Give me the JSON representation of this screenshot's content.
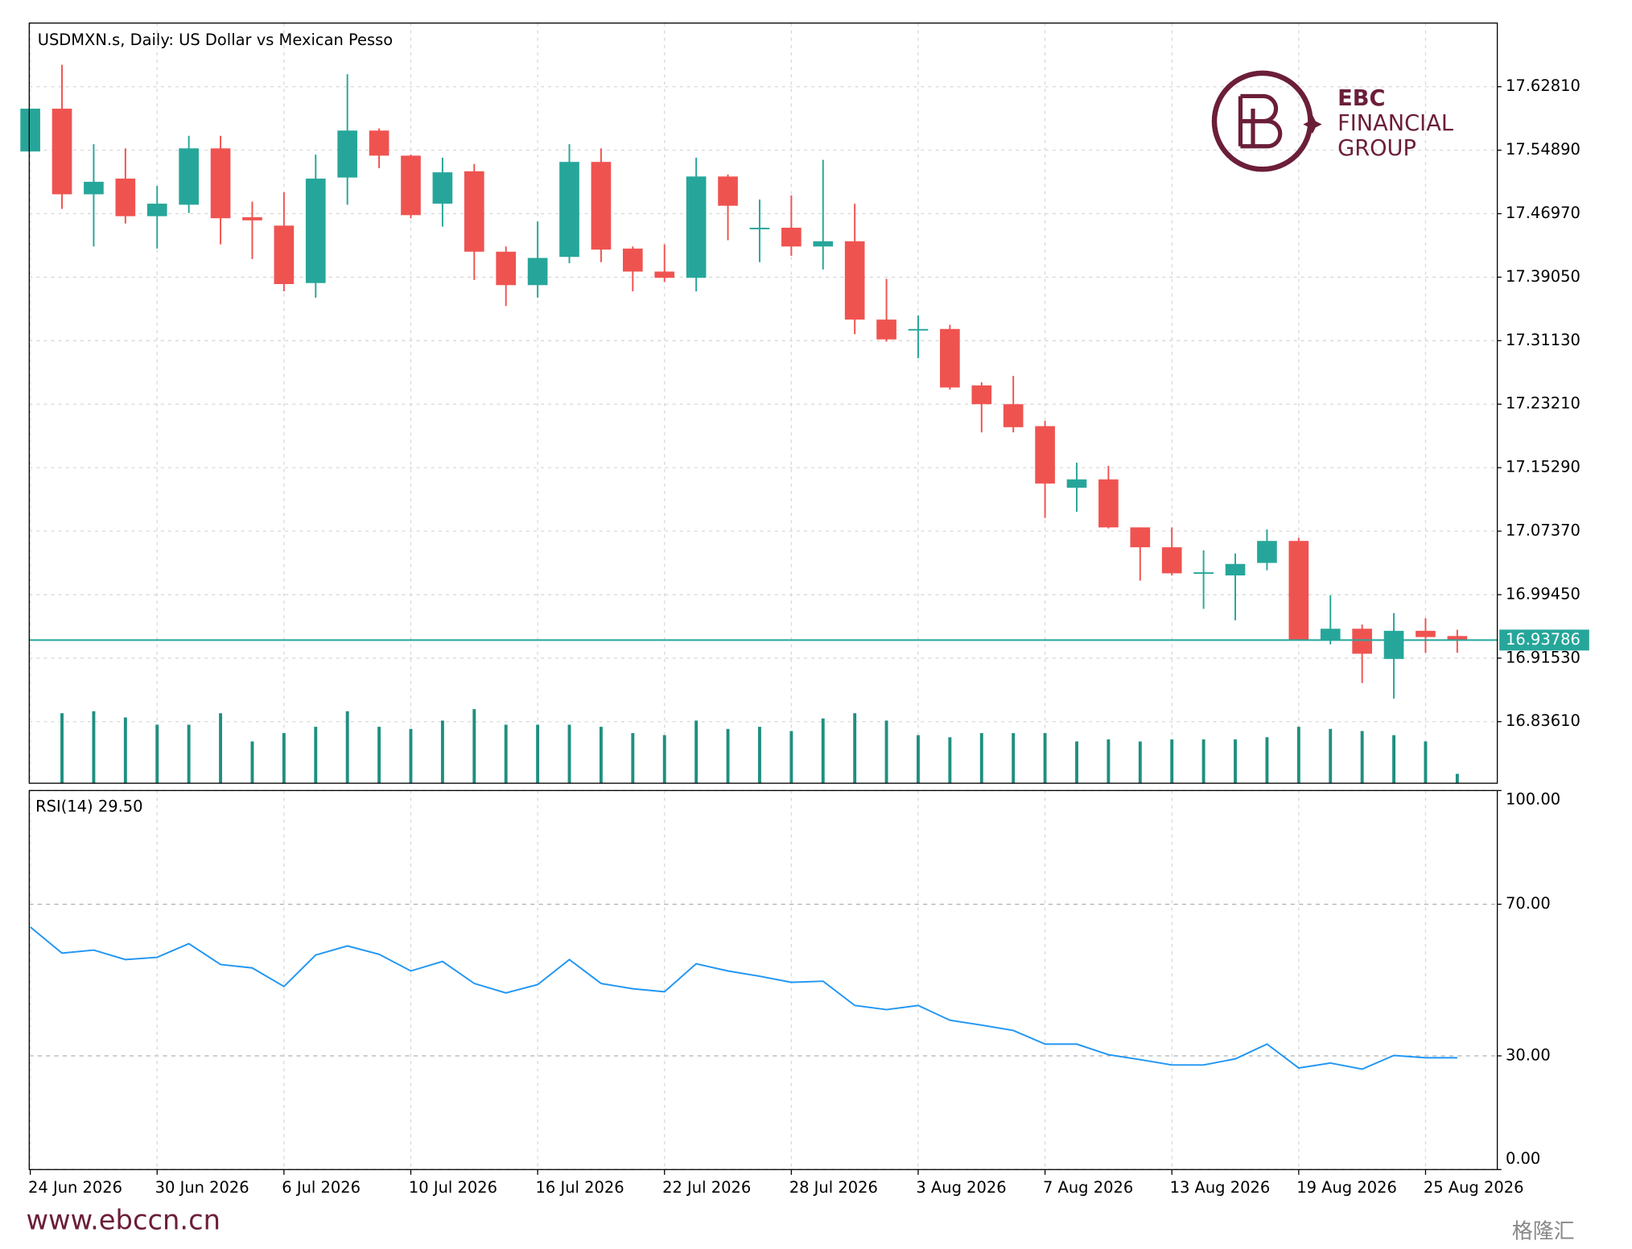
{
  "chart_data": {
    "type": "candlestick",
    "title": "USDMXN.s, Daily:  US Dollar vs Mexican Pesso",
    "categories": [
      "24 Jun 2026",
      null,
      null,
      null,
      "30 Jun 2026",
      null,
      null,
      null,
      "6 Jul 2026",
      null,
      null,
      null,
      "10 Jul 2026",
      null,
      null,
      null,
      "16 Jul 2026",
      null,
      null,
      null,
      "22 Jul 2026",
      null,
      null,
      null,
      "28 Jul 2026",
      null,
      null,
      null,
      "3 Aug 2026",
      null,
      null,
      null,
      "7 Aug 2026",
      null,
      null,
      null,
      "13 Aug 2026",
      null,
      null,
      null,
      "19 Aug 2026",
      null,
      null,
      null,
      "25 Aug 2026",
      null
    ],
    "open": [
      17.5473,
      17.6007,
      17.4939,
      17.5135,
      17.4666,
      17.4809,
      17.5512,
      17.4653,
      17.4548,
      17.3832,
      17.5148,
      17.5734,
      17.5421,
      17.4822,
      17.5226,
      17.4223,
      17.3806,
      17.4158,
      17.5343,
      17.4262,
      17.3975,
      17.3897,
      17.5161,
      17.4509,
      17.4522,
      17.4288,
      17.4353,
      17.3376,
      17.3246,
      17.3259,
      17.2555,
      17.2321,
      17.2047,
      17.1279,
      17.1383,
      17.0784,
      17.0536,
      17.0211,
      17.0185,
      17.0341,
      17.0615,
      16.9379,
      16.952,
      16.9143,
      16.9494,
      16.9429
    ],
    "high": [
      17.6007,
      17.6554,
      17.5564,
      17.5512,
      17.5043,
      17.5669,
      17.5669,
      17.4848,
      17.4965,
      17.5434,
      17.6437,
      17.576,
      17.5434,
      17.5395,
      17.5317,
      17.4288,
      17.46,
      17.5564,
      17.5512,
      17.4288,
      17.4314,
      17.5395,
      17.5187,
      17.4874,
      17.4926,
      17.5369,
      17.4822,
      17.3884,
      17.3428,
      17.3311,
      17.2594,
      17.2673,
      17.2113,
      17.1591,
      17.1552,
      17.0784,
      17.0784,
      17.0497,
      17.0458,
      17.0758,
      17.0654,
      16.9937,
      16.9572,
      16.9716,
      16.9651,
      16.9507
    ],
    "low": [
      17.5473,
      17.4757,
      17.4288,
      17.4574,
      17.4262,
      17.4705,
      17.4314,
      17.4132,
      17.3728,
      17.365,
      17.4809,
      17.5265,
      17.464,
      17.4535,
      17.3871,
      17.3545,
      17.365,
      17.4079,
      17.4092,
      17.3728,
      17.3845,
      17.3728,
      17.4366,
      17.4092,
      17.4171,
      17.4001,
      17.3194,
      17.3102,
      17.2894,
      17.2503,
      17.1969,
      17.1969,
      17.0901,
      17.0979,
      17.0771,
      17.012,
      17.0185,
      16.9768,
      16.9625,
      17.025,
      16.9379,
      16.9325,
      16.8843,
      16.8648,
      16.9221,
      16.9221
    ],
    "close": [
      17.6007,
      17.4939,
      17.5095,
      17.4666,
      17.4822,
      17.5512,
      17.464,
      17.4614,
      17.3819,
      17.5135,
      17.5734,
      17.5421,
      17.4679,
      17.5213,
      17.4223,
      17.3806,
      17.4145,
      17.5343,
      17.4249,
      17.3975,
      17.3897,
      17.5161,
      17.4796,
      17.4522,
      17.4288,
      17.4353,
      17.3376,
      17.3129,
      17.3259,
      17.2529,
      17.2321,
      17.2034,
      17.1331,
      17.1383,
      17.0784,
      17.0536,
      17.0211,
      17.0224,
      17.0328,
      17.0615,
      16.9379,
      16.952,
      16.9208,
      16.9494,
      16.9416,
      16.93786
    ],
    "volume": [
      null,
      67,
      69,
      63,
      56,
      56,
      67,
      40,
      48,
      54,
      69,
      54,
      52,
      60,
      71,
      56,
      56,
      56,
      54,
      48,
      46,
      60,
      52,
      54,
      50,
      62,
      67,
      60,
      46,
      44,
      48,
      48,
      48,
      40,
      42,
      40,
      42,
      42,
      42,
      44,
      54,
      52,
      50,
      46,
      40,
      9
    ],
    "up_color": "#26a69a",
    "down_color": "#ef5350",
    "volume_color": "#1f8f80",
    "current_price": 16.93786,
    "ylim": [
      16.7593,
      17.7075
    ],
    "yticks": [
      {
        "value": 17.6281,
        "label": "17.62810"
      },
      {
        "value": 17.5489,
        "label": "17.54890"
      },
      {
        "value": 17.4697,
        "label": "17.46970"
      },
      {
        "value": 17.3905,
        "label": "17.39050"
      },
      {
        "value": 17.3113,
        "label": "17.31130"
      },
      {
        "value": 17.2321,
        "label": "17.23210"
      },
      {
        "value": 17.1529,
        "label": "17.15290"
      },
      {
        "value": 17.0737,
        "label": "17.07370"
      },
      {
        "value": 16.9945,
        "label": "16.99450"
      },
      {
        "value": 16.9153,
        "label": "16.91530"
      },
      {
        "value": 16.8361,
        "label": "16.83610"
      }
    ],
    "grid": true,
    "rsi": {
      "label": "RSI(14) 29.50",
      "color": "#2196f3",
      "values": [
        64.0,
        57.1,
        57.9,
        55.4,
        56.0,
        59.6,
        54.1,
        53.2,
        48.3,
        56.6,
        59.0,
        56.8,
        52.4,
        54.9,
        49.1,
        46.6,
        48.8,
        55.4,
        49.1,
        47.7,
        46.9,
        54.3,
        52.4,
        51.0,
        49.4,
        49.7,
        43.3,
        42.2,
        43.3,
        39.4,
        38.1,
        36.7,
        33.1,
        33.1,
        30.3,
        29.0,
        27.6,
        27.6,
        29.2,
        33.1,
        26.8,
        28.1,
        26.5,
        30.1,
        29.5,
        29.5
      ],
      "ylim": [
        0,
        100
      ],
      "yticks": [
        {
          "value": 100,
          "label": "100.00"
        },
        {
          "value": 70,
          "label": "70.00"
        },
        {
          "value": 30,
          "label": "30.00"
        },
        {
          "value": 0,
          "label": "0.00"
        }
      ]
    }
  },
  "logo": {
    "line1": "EBC",
    "line2": "FINANCIAL",
    "line3": "GROUP"
  },
  "footer": {
    "url": "www.ebccn.cn",
    "watermark": "格隆汇"
  }
}
